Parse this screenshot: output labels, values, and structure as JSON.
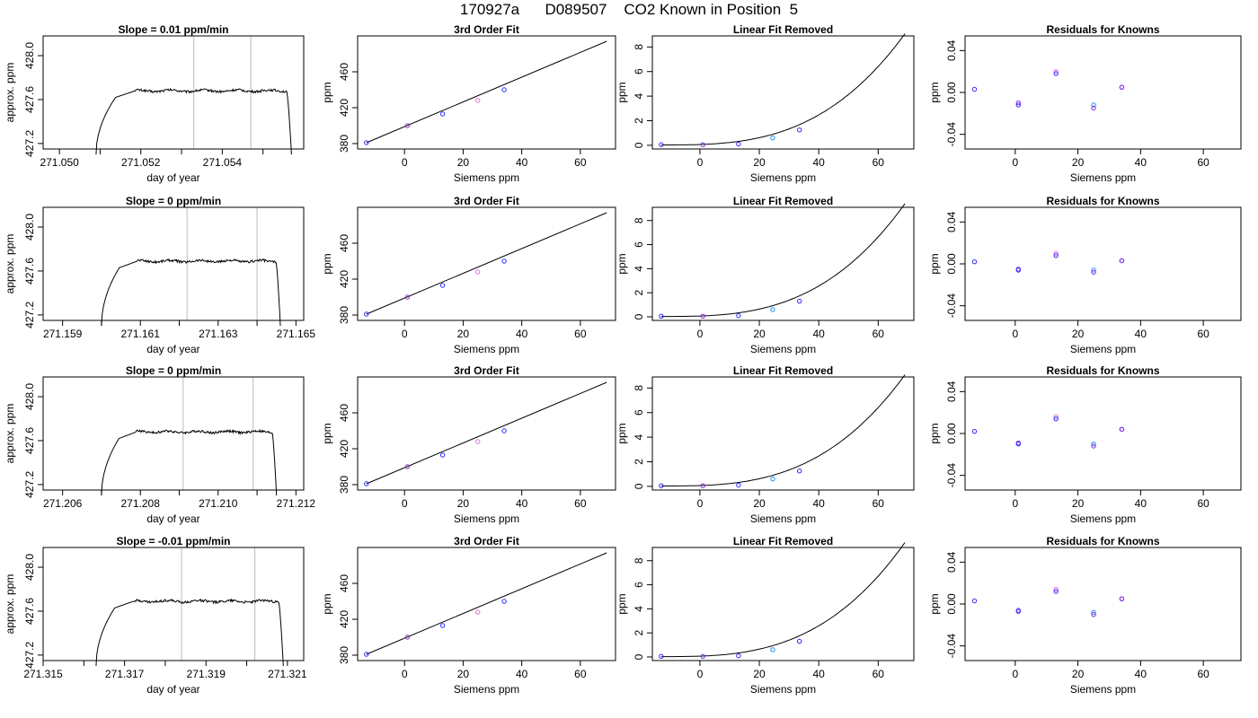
{
  "figure": {
    "title": "170927a      D089507    CO2 Known in Position  5"
  },
  "colors": {
    "line": "#000000",
    "guide": "#bbbbbb",
    "point_blue": "#2a2aff",
    "point_purple": "#8a2be2",
    "point_cyan": "#1e90ff",
    "point_pink": "#e070e0"
  },
  "chart_data": [
    {
      "type": "line",
      "title": "Slope =  0.01  ppm/min",
      "xlabel": "day of year",
      "ylabel": "approx. ppm",
      "xlim": [
        271.0496,
        271.056
      ],
      "ylim": [
        427.15,
        428.18
      ],
      "xticks": [
        271.05,
        271.052,
        271.054
      ],
      "xtick_labels": [
        "271.050",
        "271.052",
        "271.054"
      ],
      "xminor": [
        271.051,
        271.053,
        271.055
      ],
      "yticks": [
        427.2,
        427.6,
        428.0
      ],
      "ytick_labels": [
        "427.2",
        "427.6",
        "428.0"
      ],
      "vlines": [
        271.0533,
        271.0547
      ],
      "trace": {
        "start": 271.0509,
        "end": 271.0557,
        "level": 427.68
      }
    },
    {
      "type": "scatter",
      "title": "3rd Order Fit",
      "xlabel": "Siemens ppm",
      "ylabel": "ppm",
      "xlim": [
        -16,
        72
      ],
      "ylim": [
        374,
        500
      ],
      "xticks": [
        0,
        20,
        40,
        60
      ],
      "xtick_labels": [
        "0",
        "20",
        "40",
        "60"
      ],
      "yticks": [
        380,
        420,
        460
      ],
      "ytick_labels": [
        "380",
        "420",
        "460"
      ],
      "fit_x": [
        -13,
        69
      ],
      "fit_y": [
        381,
        494
      ],
      "points": [
        [
          -13,
          381
        ],
        [
          1,
          400
        ],
        [
          13,
          413
        ],
        [
          25,
          428
        ],
        [
          34,
          440
        ]
      ]
    },
    {
      "type": "scatter",
      "title": "Linear Fit Removed",
      "xlabel": "Siemens ppm",
      "ylabel": "ppm",
      "xlim": [
        -16,
        72
      ],
      "ylim": [
        -0.3,
        8.9
      ],
      "xticks": [
        0,
        20,
        40,
        60
      ],
      "xtick_labels": [
        "0",
        "20",
        "40",
        "60"
      ],
      "yticks": [
        0,
        2,
        4,
        6,
        8
      ],
      "ytick_labels": [
        "0",
        "2",
        "4",
        "6",
        "8"
      ],
      "curve": {
        "x0": -13,
        "x1": 69,
        "coef": 1.64e-05,
        "base": 0.03
      },
      "points": [
        [
          -13,
          0.05
        ],
        [
          1,
          0.05
        ],
        [
          13,
          0.1
        ],
        [
          24.5,
          0.6
        ],
        [
          33.5,
          1.25
        ]
      ]
    },
    {
      "type": "scatter",
      "title": "Residuals for Knowns",
      "xlabel": "Siemens ppm",
      "ylabel": "ppm",
      "xlim": [
        -16,
        72
      ],
      "ylim": [
        -0.054,
        0.054
      ],
      "xticks": [
        0,
        20,
        40,
        60
      ],
      "xtick_labels": [
        "0",
        "20",
        "40",
        "60"
      ],
      "yticks": [
        -0.04,
        0.0,
        0.04
      ],
      "ytick_labels": [
        "-0.04",
        "0.00",
        "0.04"
      ],
      "points": [
        [
          -13,
          0.003
        ],
        [
          1,
          -0.01
        ],
        [
          1,
          -0.012
        ],
        [
          13,
          0.02
        ],
        [
          13,
          0.018
        ],
        [
          25,
          -0.012
        ],
        [
          25,
          -0.015
        ],
        [
          34,
          0.005
        ],
        [
          34,
          0.005
        ]
      ]
    },
    {
      "type": "line",
      "title": "Slope =  0  ppm/min",
      "xlabel": "day of year",
      "ylabel": "approx. ppm",
      "xlim": [
        271.1585,
        271.1652
      ],
      "ylim": [
        427.15,
        428.18
      ],
      "xticks": [
        271.159,
        271.161,
        271.163,
        271.165
      ],
      "xtick_labels": [
        "271.159",
        "271.161",
        "271.163",
        "271.165"
      ],
      "xminor": [
        271.16,
        271.162,
        271.164
      ],
      "yticks": [
        427.2,
        427.6,
        428.0
      ],
      "ytick_labels": [
        "427.2",
        "427.6",
        "428.0"
      ],
      "vlines": [
        271.1622,
        271.164
      ],
      "trace": {
        "start": 271.16,
        "end": 271.1646,
        "level": 427.69
      }
    },
    {
      "type": "scatter",
      "title": "3rd Order Fit",
      "xlabel": "Siemens ppm",
      "ylabel": "ppm",
      "xlim": [
        -16,
        72
      ],
      "ylim": [
        374,
        500
      ],
      "xticks": [
        0,
        20,
        40,
        60
      ],
      "xtick_labels": [
        "0",
        "20",
        "40",
        "60"
      ],
      "yticks": [
        380,
        420,
        460
      ],
      "ytick_labels": [
        "380",
        "420",
        "460"
      ],
      "fit_x": [
        -13,
        69
      ],
      "fit_y": [
        381,
        494
      ],
      "points": [
        [
          -13,
          381
        ],
        [
          1,
          400
        ],
        [
          13,
          413
        ],
        [
          25,
          428
        ],
        [
          34,
          440
        ]
      ]
    },
    {
      "type": "scatter",
      "title": "Linear Fit Removed",
      "xlabel": "Siemens ppm",
      "ylabel": "ppm",
      "xlim": [
        -16,
        72
      ],
      "ylim": [
        -0.3,
        9.1
      ],
      "xticks": [
        0,
        20,
        40,
        60
      ],
      "xtick_labels": [
        "0",
        "20",
        "40",
        "60"
      ],
      "yticks": [
        0,
        2,
        4,
        6,
        8
      ],
      "ytick_labels": [
        "0",
        "2",
        "4",
        "6",
        "8"
      ],
      "curve": {
        "x0": -13,
        "x1": 69,
        "coef": 1.7e-05,
        "base": 0.03
      },
      "points": [
        [
          -13,
          0.05
        ],
        [
          1,
          0.05
        ],
        [
          13,
          0.1
        ],
        [
          24.5,
          0.6
        ],
        [
          33.5,
          1.3
        ]
      ]
    },
    {
      "type": "scatter",
      "title": "Residuals for Knowns",
      "xlabel": "Siemens ppm",
      "ylabel": "ppm",
      "xlim": [
        -16,
        72
      ],
      "ylim": [
        -0.054,
        0.054
      ],
      "xticks": [
        0,
        20,
        40,
        60
      ],
      "xtick_labels": [
        "0",
        "20",
        "40",
        "60"
      ],
      "yticks": [
        -0.04,
        0.0,
        0.04
      ],
      "ytick_labels": [
        "-0.04",
        "0.00",
        "0.04"
      ],
      "points": [
        [
          -13,
          0.002
        ],
        [
          1,
          -0.005
        ],
        [
          1,
          -0.006
        ],
        [
          13,
          0.01
        ],
        [
          13,
          0.008
        ],
        [
          25,
          -0.006
        ],
        [
          25,
          -0.008
        ],
        [
          34,
          0.003
        ],
        [
          34,
          0.003
        ]
      ]
    },
    {
      "type": "line",
      "title": "Slope =  0  ppm/min",
      "xlabel": "day of year",
      "ylabel": "approx. ppm",
      "xlim": [
        271.2055,
        271.2122
      ],
      "ylim": [
        427.15,
        428.18
      ],
      "xticks": [
        271.206,
        271.208,
        271.21,
        271.212
      ],
      "xtick_labels": [
        "271.206",
        "271.208",
        "271.210",
        "271.212"
      ],
      "xminor": [
        271.207,
        271.209,
        271.211
      ],
      "yticks": [
        427.2,
        427.6,
        428.0
      ],
      "ytick_labels": [
        "427.2",
        "427.6",
        "428.0"
      ],
      "vlines": [
        271.2091,
        271.2109
      ],
      "trace": {
        "start": 271.207,
        "end": 271.2115,
        "level": 427.68
      }
    },
    {
      "type": "scatter",
      "title": "3rd Order Fit",
      "xlabel": "Siemens ppm",
      "ylabel": "ppm",
      "xlim": [
        -16,
        72
      ],
      "ylim": [
        374,
        500
      ],
      "xticks": [
        0,
        20,
        40,
        60
      ],
      "xtick_labels": [
        "0",
        "20",
        "40",
        "60"
      ],
      "yticks": [
        380,
        420,
        460
      ],
      "ytick_labels": [
        "380",
        "420",
        "460"
      ],
      "fit_x": [
        -13,
        69
      ],
      "fit_y": [
        381,
        494
      ],
      "points": [
        [
          -13,
          381
        ],
        [
          1,
          400
        ],
        [
          13,
          413
        ],
        [
          25,
          428
        ],
        [
          34,
          440
        ]
      ]
    },
    {
      "type": "scatter",
      "title": "Linear Fit Removed",
      "xlabel": "Siemens ppm",
      "ylabel": "ppm",
      "xlim": [
        -16,
        72
      ],
      "ylim": [
        -0.3,
        8.9
      ],
      "xticks": [
        0,
        20,
        40,
        60
      ],
      "xtick_labels": [
        "0",
        "20",
        "40",
        "60"
      ],
      "yticks": [
        0,
        2,
        4,
        6,
        8
      ],
      "ytick_labels": [
        "0",
        "2",
        "4",
        "6",
        "8"
      ],
      "curve": {
        "x0": -13,
        "x1": 69,
        "coef": 1.64e-05,
        "base": 0.03
      },
      "points": [
        [
          -13,
          0.05
        ],
        [
          1,
          0.05
        ],
        [
          13,
          0.1
        ],
        [
          24.5,
          0.6
        ],
        [
          33.5,
          1.25
        ]
      ]
    },
    {
      "type": "scatter",
      "title": "Residuals for Knowns",
      "xlabel": "Siemens ppm",
      "ylabel": "ppm",
      "xlim": [
        -16,
        72
      ],
      "ylim": [
        -0.054,
        0.054
      ],
      "xticks": [
        0,
        20,
        40,
        60
      ],
      "xtick_labels": [
        "0",
        "20",
        "40",
        "60"
      ],
      "yticks": [
        -0.04,
        0.0,
        0.04
      ],
      "ytick_labels": [
        "-0.04",
        "0.00",
        "0.04"
      ],
      "points": [
        [
          -13,
          0.002
        ],
        [
          1,
          -0.009
        ],
        [
          1,
          -0.01
        ],
        [
          13,
          0.016
        ],
        [
          13,
          0.014
        ],
        [
          25,
          -0.01
        ],
        [
          25,
          -0.012
        ],
        [
          34,
          0.004
        ],
        [
          34,
          0.004
        ]
      ]
    },
    {
      "type": "line",
      "title": "Slope =  -0.01  ppm/min",
      "xlabel": "day of year",
      "ylabel": "approx. ppm",
      "xlim": [
        271.315,
        271.3214
      ],
      "ylim": [
        427.15,
        428.18
      ],
      "xticks": [
        271.315,
        271.317,
        271.319,
        271.321
      ],
      "xtick_labels": [
        "271.315",
        "271.317",
        "271.319",
        "271.321"
      ],
      "xminor": [
        271.316,
        271.318,
        271.32
      ],
      "yticks": [
        427.2,
        427.6,
        428.0
      ],
      "ytick_labels": [
        "427.2",
        "427.6",
        "428.0"
      ],
      "vlines": [
        271.3184,
        271.3202
      ],
      "trace": {
        "start": 271.3163,
        "end": 271.3209,
        "level": 427.69
      }
    },
    {
      "type": "scatter",
      "title": "3rd Order Fit",
      "xlabel": "Siemens ppm",
      "ylabel": "ppm",
      "xlim": [
        -16,
        72
      ],
      "ylim": [
        374,
        500
      ],
      "xticks": [
        0,
        20,
        40,
        60
      ],
      "xtick_labels": [
        "0",
        "20",
        "40",
        "60"
      ],
      "yticks": [
        380,
        420,
        460
      ],
      "ytick_labels": [
        "380",
        "420",
        "460"
      ],
      "fit_x": [
        -13,
        69
      ],
      "fit_y": [
        381,
        494
      ],
      "points": [
        [
          -13,
          381
        ],
        [
          1,
          400
        ],
        [
          13,
          413
        ],
        [
          25,
          428
        ],
        [
          34,
          440
        ]
      ]
    },
    {
      "type": "scatter",
      "title": "Linear Fit Removed",
      "xlabel": "Siemens ppm",
      "ylabel": "ppm",
      "xlim": [
        -16,
        72
      ],
      "ylim": [
        -0.3,
        9.1
      ],
      "xticks": [
        0,
        20,
        40,
        60
      ],
      "xtick_labels": [
        "0",
        "20",
        "40",
        "60"
      ],
      "yticks": [
        0,
        2,
        4,
        6,
        8
      ],
      "ytick_labels": [
        "0",
        "2",
        "4",
        "6",
        "8"
      ],
      "curve": {
        "x0": -13,
        "x1": 69,
        "coef": 1.72e-05,
        "base": 0.03
      },
      "points": [
        [
          -13,
          0.05
        ],
        [
          1,
          0.05
        ],
        [
          13,
          0.1
        ],
        [
          24.5,
          0.6
        ],
        [
          33.5,
          1.3
        ]
      ]
    },
    {
      "type": "scatter",
      "title": "Residuals for Knowns",
      "xlabel": "Siemens ppm",
      "ylabel": "ppm",
      "xlim": [
        -16,
        72
      ],
      "ylim": [
        -0.054,
        0.054
      ],
      "xticks": [
        0,
        20,
        40,
        60
      ],
      "xtick_labels": [
        "0",
        "20",
        "40",
        "60"
      ],
      "yticks": [
        -0.04,
        0.0,
        0.04
      ],
      "ytick_labels": [
        "-0.04",
        "0.00",
        "0.04"
      ],
      "points": [
        [
          -13,
          0.003
        ],
        [
          1,
          -0.006
        ],
        [
          1,
          -0.007
        ],
        [
          13,
          0.014
        ],
        [
          13,
          0.012
        ],
        [
          25,
          -0.008
        ],
        [
          25,
          -0.01
        ],
        [
          34,
          0.005
        ],
        [
          34,
          0.005
        ]
      ]
    }
  ]
}
